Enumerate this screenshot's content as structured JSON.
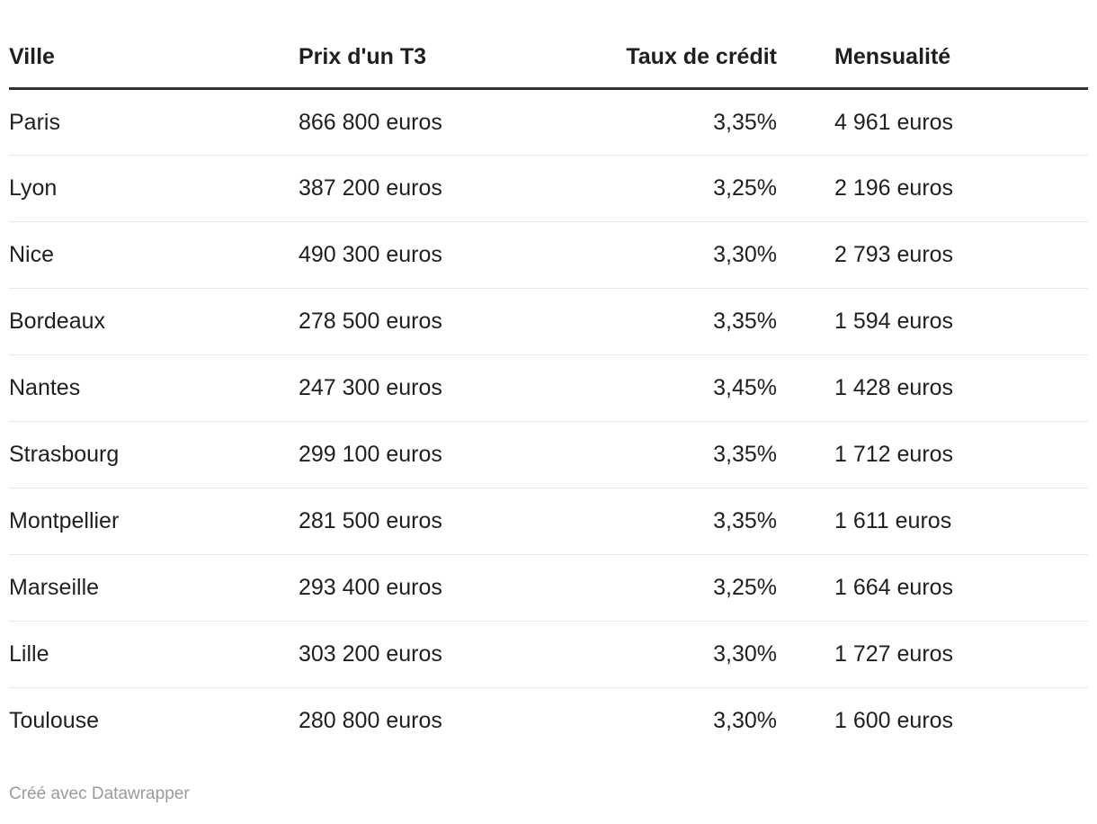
{
  "chart_data": {
    "type": "table",
    "title": "",
    "columns": [
      "Ville",
      "Prix d'un T3",
      "Taux de crédit",
      "Mensualité"
    ],
    "column_keys": [
      "ville",
      "prix-t3",
      "taux-credit",
      "mensualite"
    ],
    "column_align": [
      "left",
      "left",
      "right",
      "left"
    ],
    "rows": [
      [
        "Paris",
        "866 800 euros",
        "3,35%",
        "4 961 euros"
      ],
      [
        "Lyon",
        "387 200 euros",
        "3,25%",
        "2 196 euros"
      ],
      [
        "Nice",
        "490 300 euros",
        "3,30%",
        "2 793 euros"
      ],
      [
        "Bordeaux",
        "278 500 euros",
        "3,35%",
        "1 594 euros"
      ],
      [
        "Nantes",
        "247 300 euros",
        "3,45%",
        "1 428 euros"
      ],
      [
        "Strasbourg",
        "299 100 euros",
        "3,35%",
        "1 712 euros"
      ],
      [
        "Montpellier",
        "281 500 euros",
        "3,35%",
        "1 611 euros"
      ],
      [
        "Marseille",
        "293 400 euros",
        "3,25%",
        "1 664 euros"
      ],
      [
        "Lille",
        "303 200 euros",
        "3,30%",
        "1 727 euros"
      ],
      [
        "Toulouse",
        "280 800 euros",
        "3,30%",
        "1 600 euros"
      ]
    ]
  },
  "footer": {
    "attribution": "Créé avec Datawrapper"
  },
  "colors": {
    "text": "#1f1f1f",
    "header_border": "#313131",
    "row_border": "#e9e9e9",
    "attribution_text": "#9b9b9b",
    "background": "#ffffff"
  }
}
